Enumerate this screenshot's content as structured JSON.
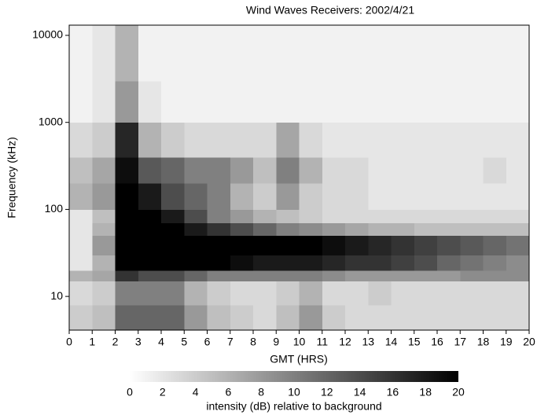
{
  "chart_data": {
    "type": "heatmap",
    "title": "Wind Waves Receivers: 2002/4/21",
    "xlabel": "GMT (HRS)",
    "ylabel": "Frequency (kHz)",
    "colorbar_label": "intensity (dB) relative to background",
    "xlim": [
      0,
      20
    ],
    "xticks": [
      0,
      1,
      2,
      3,
      4,
      5,
      6,
      7,
      8,
      9,
      10,
      11,
      12,
      13,
      14,
      15,
      16,
      17,
      18,
      19,
      20
    ],
    "ylim": [
      4.1,
      13100
    ],
    "yscale": "log",
    "yticks": [
      10,
      100,
      1000,
      10000
    ],
    "x_edges": [
      0,
      1,
      2,
      3,
      4,
      5,
      6,
      7,
      8,
      9,
      10,
      11,
      12,
      13,
      14,
      15,
      16,
      17,
      18,
      19,
      20
    ],
    "y_edges": [
      4.1,
      8,
      15,
      20,
      30,
      50,
      70,
      100,
      200,
      400,
      1000,
      3000,
      13100
    ],
    "z": [
      [
        4,
        5,
        12,
        12,
        12,
        8,
        5,
        4,
        3,
        5,
        8,
        4,
        3,
        3,
        3,
        3,
        3,
        3,
        3,
        3
      ],
      [
        3,
        4,
        10,
        10,
        10,
        6,
        4,
        3,
        3,
        4,
        6,
        3,
        3,
        4,
        3,
        3,
        3,
        3,
        3,
        3
      ],
      [
        6,
        7,
        16,
        14,
        14,
        12,
        10,
        10,
        10,
        10,
        10,
        9,
        8,
        8,
        8,
        8,
        8,
        9,
        9,
        9
      ],
      [
        2,
        6,
        20,
        20,
        20,
        20,
        20,
        19,
        18,
        18,
        18,
        17,
        16,
        16,
        15,
        14,
        12,
        11,
        10,
        9
      ],
      [
        2,
        8,
        20,
        20,
        20,
        20,
        20,
        20,
        20,
        20,
        20,
        19,
        18,
        17,
        16,
        15,
        14,
        13,
        12,
        11
      ],
      [
        2,
        6,
        20,
        20,
        20,
        18,
        16,
        14,
        12,
        10,
        9,
        8,
        7,
        6,
        6,
        5,
        5,
        5,
        5,
        5
      ],
      [
        2,
        5,
        20,
        20,
        18,
        14,
        10,
        8,
        6,
        5,
        4,
        3,
        3,
        3,
        3,
        3,
        3,
        3,
        3,
        3
      ],
      [
        6,
        8,
        20,
        18,
        14,
        12,
        10,
        6,
        4,
        8,
        4,
        3,
        3,
        2,
        2,
        2,
        2,
        2,
        2,
        2
      ],
      [
        5,
        7,
        19,
        13,
        12,
        10,
        10,
        8,
        5,
        10,
        6,
        3,
        3,
        2,
        2,
        2,
        2,
        2,
        3,
        2
      ],
      [
        3,
        4,
        17,
        6,
        4,
        3,
        3,
        3,
        3,
        7,
        3,
        2,
        2,
        2,
        2,
        2,
        2,
        2,
        2,
        2
      ],
      [
        1,
        2,
        8,
        2,
        1,
        1,
        1,
        1,
        1,
        1,
        1,
        1,
        1,
        1,
        1,
        1,
        1,
        1,
        1,
        1
      ],
      [
        1,
        2,
        6,
        1,
        1,
        1,
        1,
        1,
        1,
        1,
        1,
        1,
        1,
        1,
        1,
        1,
        1,
        1,
        1,
        1
      ]
    ],
    "clim": [
      0,
      20
    ],
    "cticks": [
      0,
      2,
      4,
      6,
      8,
      10,
      12,
      14,
      16,
      18,
      20
    ],
    "colormap": [
      "#ffffff",
      "#000000"
    ]
  }
}
